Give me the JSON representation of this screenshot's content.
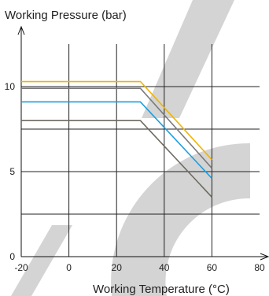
{
  "chart_data": {
    "type": "line",
    "ylabel": "Working Pressure (bar)",
    "xlabel": "Working Temperature (°C)",
    "xlim": [
      -20,
      80
    ],
    "ylim": [
      0,
      12.5
    ],
    "x_ticks": [
      -20,
      0,
      20,
      40,
      60,
      80
    ],
    "y_ticks": [
      0,
      5,
      10
    ],
    "y_gridlines": [
      2.5,
      5,
      7.5,
      10
    ],
    "grid": true,
    "series": [
      {
        "color": "#f0b400",
        "x": [
          -20,
          30,
          60
        ],
        "y": [
          10.3,
          10.3,
          5.7
        ]
      },
      {
        "color": "#7a7a7a",
        "x": [
          -20,
          30,
          60
        ],
        "y": [
          9.9,
          9.9,
          5.2
        ]
      },
      {
        "color": "#1a9ee0",
        "x": [
          -20,
          30,
          60
        ],
        "y": [
          9.1,
          9.1,
          4.6
        ]
      },
      {
        "color": "#6e6a60",
        "x": [
          -20,
          30,
          60
        ],
        "y": [
          8.0,
          8.0,
          3.5
        ]
      }
    ]
  }
}
